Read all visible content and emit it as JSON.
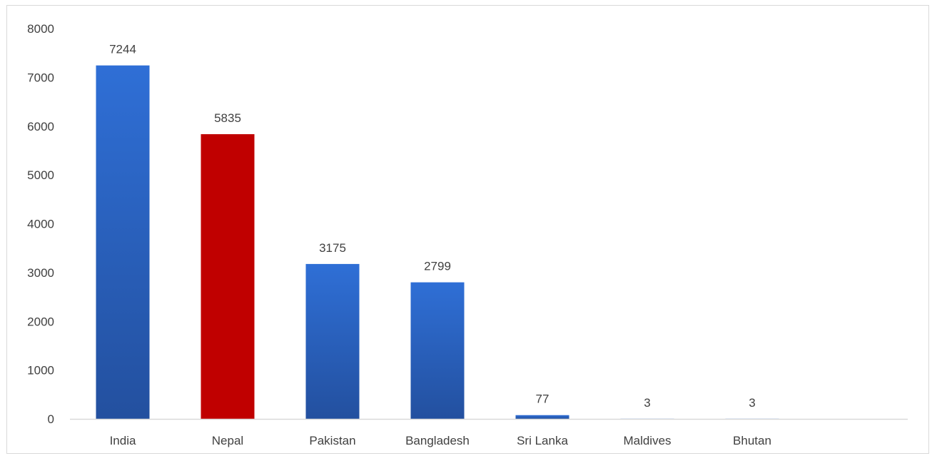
{
  "colors": {
    "bar_top": "#2f6fd6",
    "bar_bottom": "#23509f",
    "highlight": "#c00000",
    "axis": "#d9d9d9",
    "text": "#404040"
  },
  "chart_data": {
    "type": "bar",
    "title": "",
    "xlabel": "",
    "ylabel": "",
    "categories": [
      "India",
      "Nepal",
      "Pakistan",
      "Bangladesh",
      "Sri Lanka",
      "Maldives",
      "Bhutan"
    ],
    "values": [
      7244,
      5835,
      3175,
      2799,
      77,
      3,
      3
    ],
    "data_labels": [
      "7244",
      "5835",
      "3175",
      "2799",
      "77",
      "3",
      "3"
    ],
    "highlighted_category": "Nepal",
    "ylim": [
      0,
      8000
    ],
    "yticks": [
      0,
      1000,
      2000,
      3000,
      4000,
      5000,
      6000,
      7000,
      8000
    ],
    "ytick_labels": [
      "0",
      "1000",
      "2000",
      "3000",
      "4000",
      "5000",
      "6000",
      "7000",
      "8000"
    ],
    "grid": false,
    "legend": "none"
  }
}
